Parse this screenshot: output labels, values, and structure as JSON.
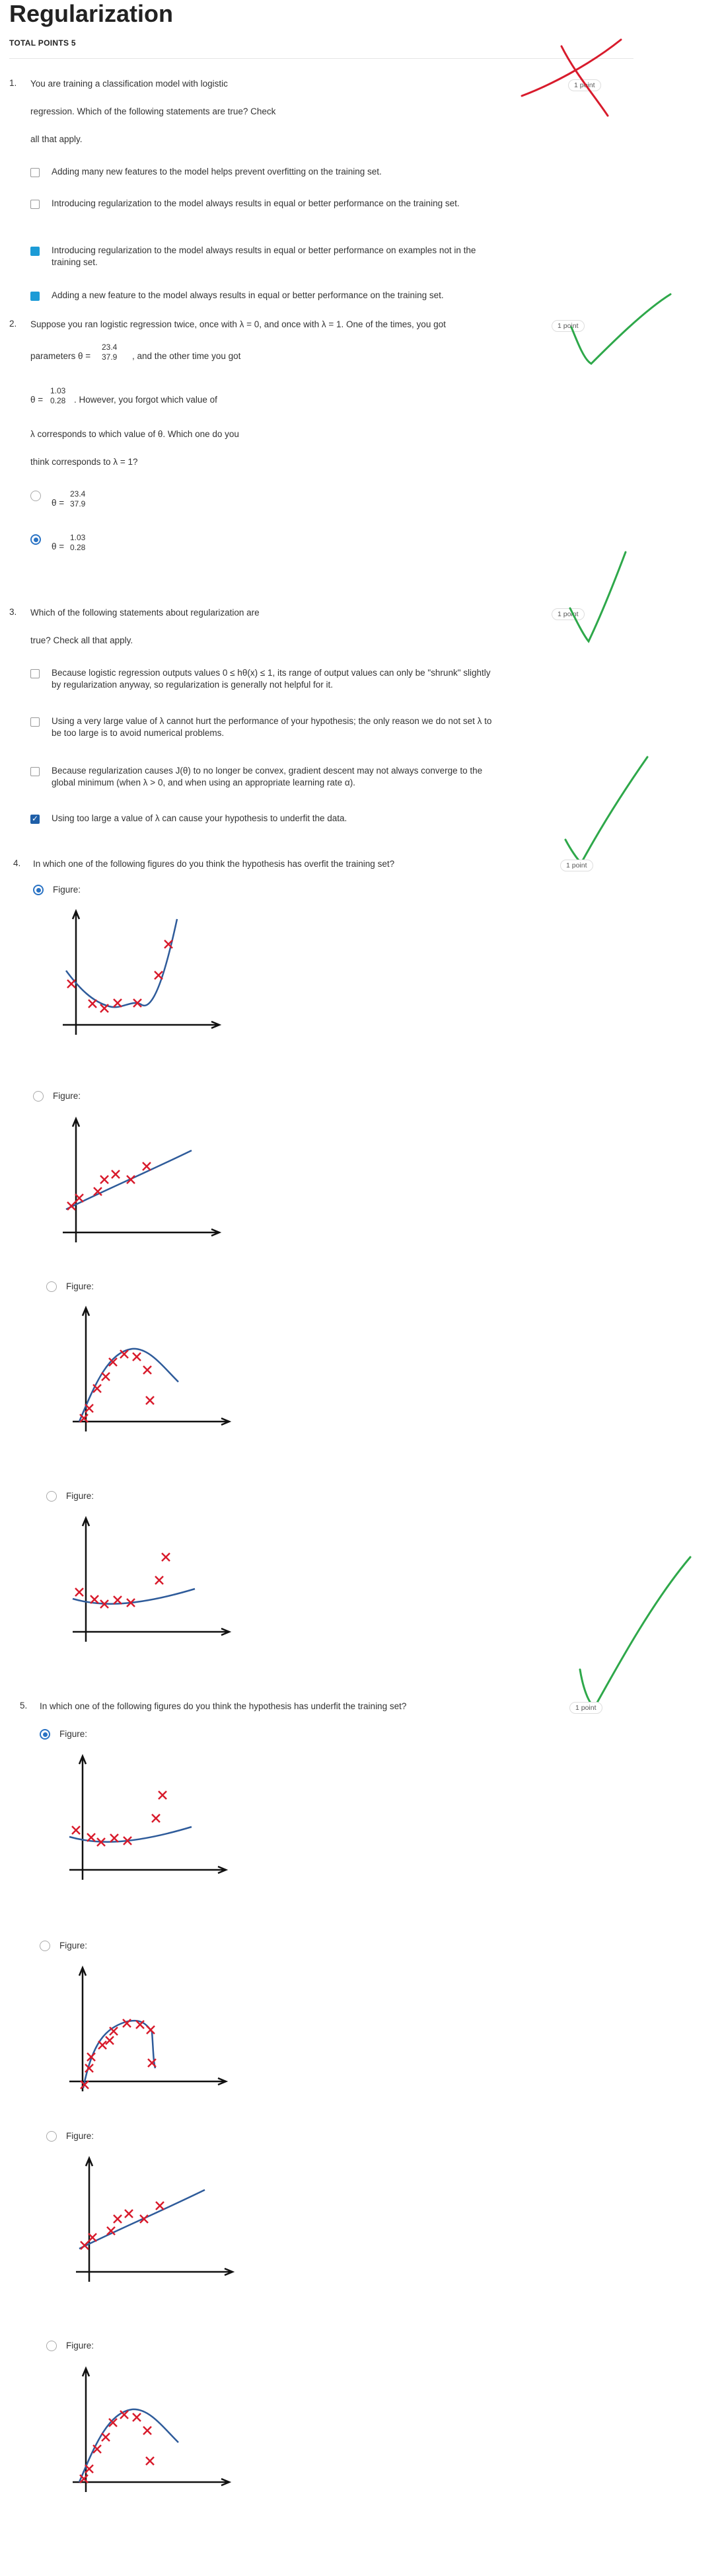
{
  "header": {
    "title": "Regularization",
    "total_points": "TOTAL POINTS 5"
  },
  "points_label_1": "1 point",
  "q1": {
    "num": "1.",
    "prompt_1": "You are training a classification model with logistic",
    "prompt_2": "regression. Which of the following statements are true? Check",
    "prompt_3": "all that apply.",
    "options": [
      "Adding many new features to the model helps prevent overfitting on the training set.",
      "Introducing regularization to the model always results in equal or better performance on the training set.",
      "Introducing regularization to the model always results in equal or better performance on examples not in the training set.",
      "Adding a new feature to the model always results in equal or better performance on the training set."
    ]
  },
  "q2": {
    "num": "2.",
    "line1": "Suppose you ran logistic regression twice, once with λ = 0, and once with λ = 1. One of the times, you got",
    "line2_pre": "parameters θ =",
    "line2_post": ", and the other time you got",
    "theta_a": [
      "23.4",
      "37.9"
    ],
    "theta_b": [
      "1.03",
      "0.28"
    ],
    "line3_pre": "θ =",
    "line3_post": ". However, you forgot which value of",
    "line4": "λ corresponds to which value of θ. Which one do you",
    "line5": "think corresponds to λ = 1?",
    "opt_prefix": "θ ="
  },
  "q3": {
    "num": "3.",
    "prompt_1": "Which of the following statements about regularization are",
    "prompt_2": "true? Check all that apply.",
    "options": [
      "Because logistic regression outputs values 0 ≤ hθ(x) ≤ 1, its range of output values can only be \"shrunk\" slightly by regularization anyway, so regularization is generally not helpful for it.",
      "Using a very large value of λ cannot hurt the performance of your hypothesis; the only reason we do not set λ to be too large is to avoid numerical problems.",
      "Because regularization causes J(θ) to no longer be convex, gradient descent may not always converge to the global minimum (when λ > 0, and when using an appropriate learning rate α).",
      "Using too large a value of λ can cause your hypothesis to underfit the data."
    ]
  },
  "q4": {
    "num": "4.",
    "prompt": "In which one of the following figures do you think the hypothesis has overfit the training set?"
  },
  "q5": {
    "num": "5.",
    "prompt": "In which one of the following figures do you think the hypothesis has underfit the training set?"
  },
  "figure_label": "Figure:",
  "colors": {
    "accent": "#1c9bd6",
    "radio": "#2a73c4",
    "cross": "#d81b2c",
    "curve": "#2e5b9a",
    "grade_green": "#2ea84a",
    "grade_red": "#d81b2c"
  }
}
